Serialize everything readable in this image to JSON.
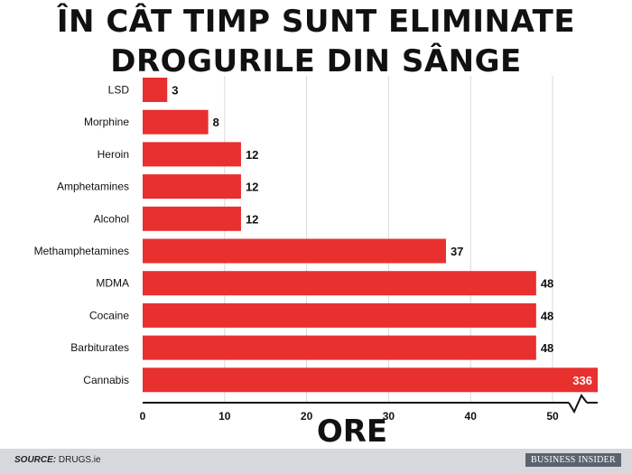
{
  "title_line1": "ÎN CÂT TIMP SUNT ELIMINATE",
  "title_line2": "DROGURILE DIN SÂNGE",
  "footer": {
    "source_label": "SOURCE:",
    "source_value": "DRUGS.ie",
    "brand": "BUSINESS INSIDER"
  },
  "colors": {
    "bar": "#e8302f",
    "grid": "#d9d9d9",
    "axis": "#111111"
  },
  "chart_data": {
    "type": "bar",
    "orientation": "horizontal",
    "title": "ÎN CÂT TIMP SUNT ELIMINATE DROGURILE DIN SÂNGE",
    "xlabel": "ORE",
    "ylabel": "",
    "categories": [
      "LSD",
      "Morphine",
      "Heroin",
      "Amphetamines",
      "Alcohol",
      "Methamphetamines",
      "MDMA",
      "Cocaine",
      "Barbiturates",
      "Cannabis"
    ],
    "values": [
      3,
      8,
      12,
      12,
      12,
      37,
      48,
      48,
      48,
      336
    ],
    "xlim": [
      0,
      55
    ],
    "xticks": [
      0,
      10,
      20,
      30,
      40,
      50
    ],
    "axis_break": true,
    "grid": true,
    "legend": "none"
  }
}
